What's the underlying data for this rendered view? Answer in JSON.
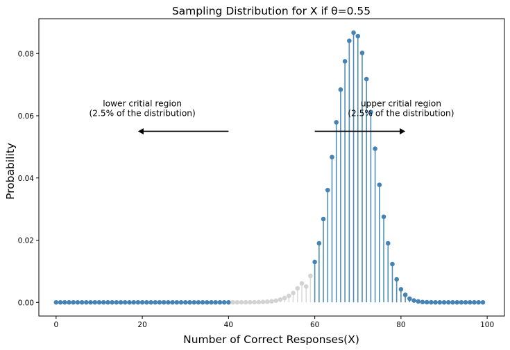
{
  "chart_data": {
    "type": "stem",
    "title": "Sampling Distribution for X if θ=0.55",
    "xlabel": "Number of Correct Responses(X)",
    "ylabel": "Probability",
    "xlim": [
      -4,
      104
    ],
    "ylim": [
      -0.0044,
      0.0912
    ],
    "xticks": [
      0,
      20,
      40,
      60,
      80,
      100
    ],
    "yticks": [
      0.0,
      0.02,
      0.04,
      0.06,
      0.08
    ],
    "ytick_labels": [
      "0.00",
      "0.02",
      "0.04",
      "0.06",
      "0.08"
    ],
    "grid": false,
    "x": [
      0,
      1,
      2,
      3,
      4,
      5,
      6,
      7,
      8,
      9,
      10,
      11,
      12,
      13,
      14,
      15,
      16,
      17,
      18,
      19,
      20,
      21,
      22,
      23,
      24,
      25,
      26,
      27,
      28,
      29,
      30,
      31,
      32,
      33,
      34,
      35,
      36,
      37,
      38,
      39,
      40,
      41,
      42,
      43,
      44,
      45,
      46,
      47,
      48,
      49,
      50,
      51,
      52,
      53,
      54,
      55,
      56,
      57,
      58,
      59,
      60,
      61,
      62,
      63,
      64,
      65,
      66,
      67,
      68,
      69,
      70,
      71,
      72,
      73,
      74,
      75,
      76,
      77,
      78,
      79,
      80,
      81,
      82,
      83,
      84,
      85,
      86,
      87,
      88,
      89,
      90,
      91,
      92,
      93,
      94,
      95,
      96,
      97,
      98,
      99
    ],
    "values": [
      0.0,
      0.0,
      0.0,
      0.0,
      0.0,
      0.0,
      0.0,
      0.0,
      0.0,
      0.0,
      0.0,
      0.0,
      0.0,
      0.0,
      0.0,
      0.0,
      0.0,
      0.0,
      0.0,
      0.0,
      0.0,
      0.0,
      0.0,
      0.0,
      0.0,
      0.0,
      0.0,
      0.0,
      0.0,
      0.0,
      0.0,
      0.0,
      0.0,
      0.0,
      0.0,
      0.0,
      0.0,
      0.0,
      0.0,
      0.0,
      0.0,
      0.0,
      0.0,
      1e-05,
      1e-05,
      2e-05,
      4e-05,
      7e-05,
      0.00012,
      0.0002,
      0.00034,
      0.00056,
      0.00089,
      0.00138,
      0.0021,
      0.003,
      0.0045,
      0.0061,
      0.0051,
      0.0085,
      0.013,
      0.019,
      0.0268,
      0.0361,
      0.0467,
      0.0579,
      0.0684,
      0.0775,
      0.0841,
      0.0867,
      0.0856,
      0.0802,
      0.0718,
      0.0612,
      0.0494,
      0.0378,
      0.0275,
      0.019,
      0.0123,
      0.0074,
      0.0042,
      0.0024,
      0.0012,
      0.0006,
      0.0003,
      0.0001,
      5e-05,
      2e-05,
      0.0,
      0.0,
      0.0,
      0.0,
      0.0,
      0.0,
      0.0,
      0.0,
      0.0,
      0.0,
      0.0,
      0.0
    ],
    "critical_lower_max": 40,
    "critical_upper_min": 60,
    "colors": {
      "critical": "#4682b4",
      "noncritical": "#d3d3d3",
      "upper_stem": "#4f8fb6",
      "gray_stem": "#dcdcdc"
    },
    "annotations": [
      {
        "id": "lower",
        "lines": [
          "lower critial region",
          "(2.5% of the distribution)"
        ],
        "text_x": 20,
        "text_y": 0.0615,
        "arrow_from": 40,
        "arrow_to": 19,
        "arrow_y": 0.055
      },
      {
        "id": "upper",
        "lines": [
          "upper critial region",
          "(2.5% of the distribution)"
        ],
        "text_x": 80,
        "text_y": 0.0615,
        "arrow_from": 60,
        "arrow_to": 81,
        "arrow_y": 0.055
      }
    ]
  }
}
